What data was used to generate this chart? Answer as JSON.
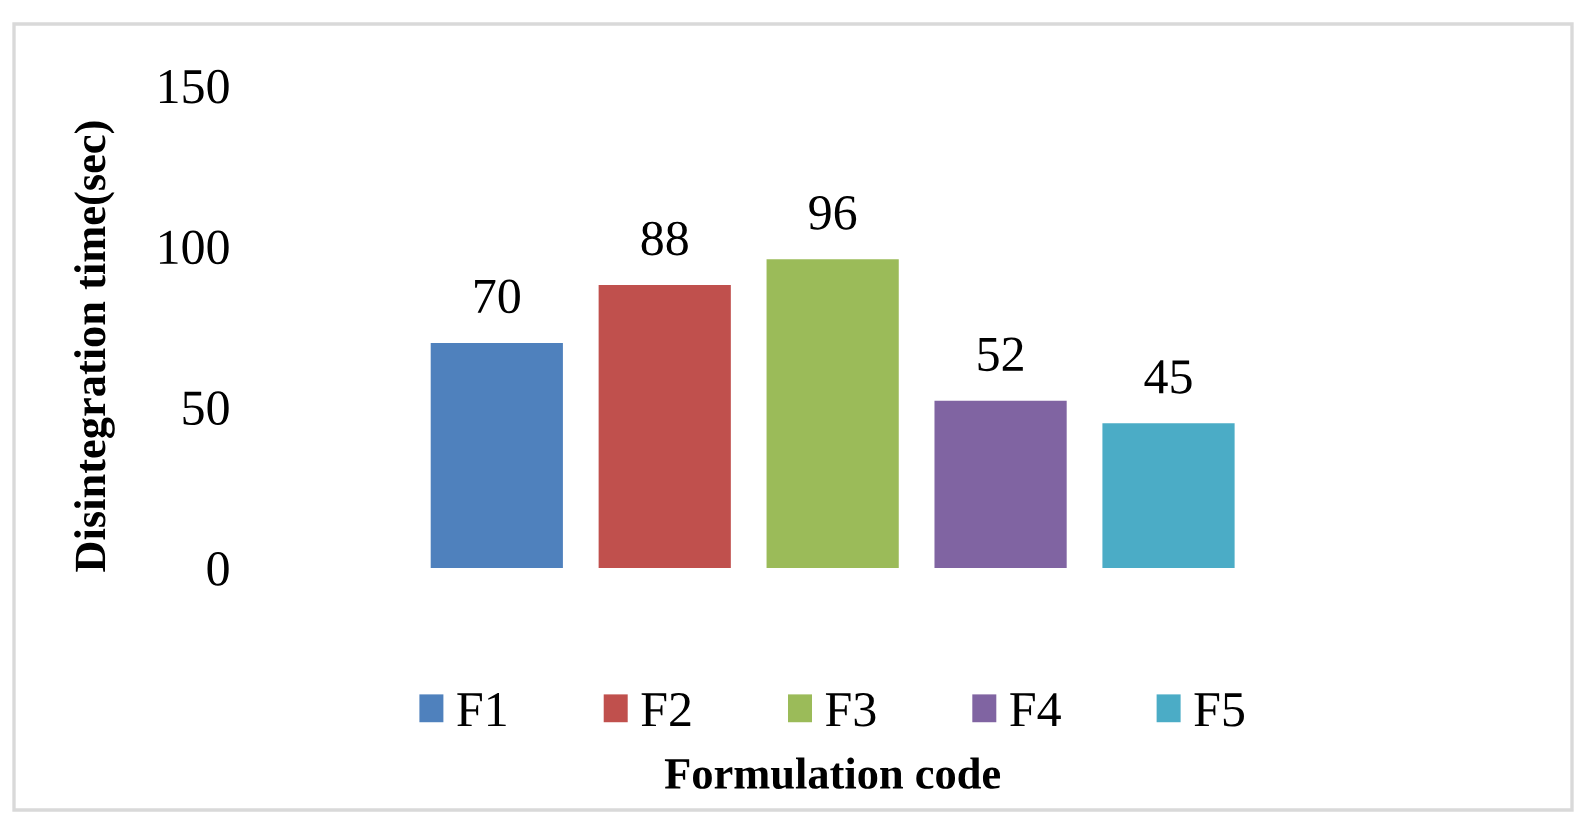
{
  "chart_data": {
    "type": "bar",
    "ylabel": "Disintegration time(sec)",
    "xlabel": "Formulation code",
    "categories": [
      null
    ],
    "series": [
      {
        "name": "F1",
        "color": "#4f81bd",
        "values": [
          70
        ]
      },
      {
        "name": "F2",
        "color": "#c0504d",
        "values": [
          88
        ]
      },
      {
        "name": "F3",
        "color": "#9bbb59",
        "values": [
          96
        ]
      },
      {
        "name": "F4",
        "color": "#8064a2",
        "values": [
          52
        ]
      },
      {
        "name": "F5",
        "color": "#4bacc6",
        "values": [
          45
        ]
      }
    ],
    "ylim": [
      0,
      150
    ],
    "yticks": [
      0,
      50,
      100,
      150
    ],
    "data_labels": true,
    "legend": "bottom",
    "tick_labels": "y",
    "grid": false
  }
}
